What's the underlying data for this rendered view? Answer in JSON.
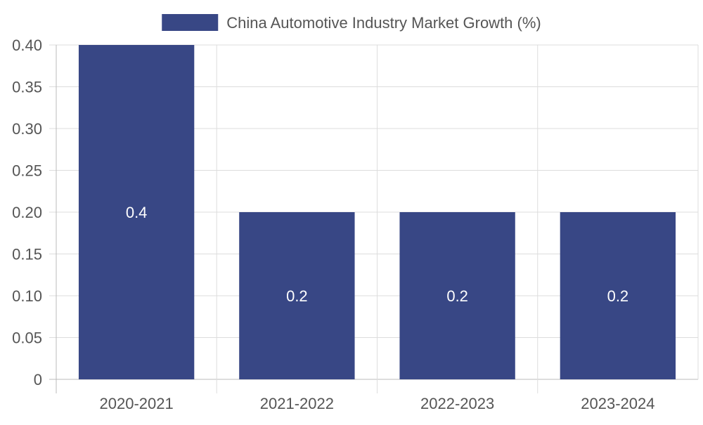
{
  "chart_data": {
    "type": "bar",
    "categories": [
      "2020-2021",
      "2021-2022",
      "2022-2023",
      "2023-2024"
    ],
    "series": [
      {
        "name": "China Automotive Industry Market Growth (%)",
        "values": [
          0.4,
          0.2,
          0.2,
          0.2
        ],
        "color": "#384785"
      }
    ],
    "data_labels": [
      "0.4",
      "0.2",
      "0.2",
      "0.2"
    ],
    "y_ticks": [
      "0",
      "0.05",
      "0.10",
      "0.15",
      "0.20",
      "0.25",
      "0.30",
      "0.35",
      "0.40"
    ],
    "ylim": [
      0,
      0.4
    ],
    "grid": true,
    "legend_position": "top-center",
    "colors": {
      "bar": "#384785",
      "grid": "#dddddd",
      "axis": "#bbbbbb",
      "tick_text": "#555555",
      "data_label": "#ffffff"
    }
  }
}
